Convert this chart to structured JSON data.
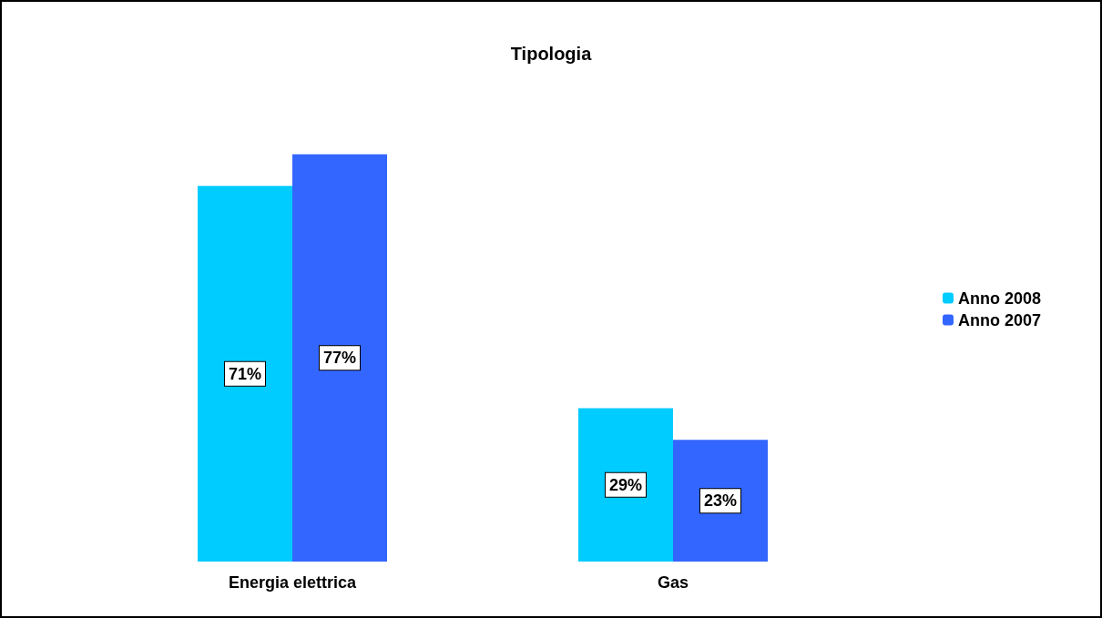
{
  "chart_data": {
    "type": "bar",
    "title": "Tipologia",
    "categories": [
      "Energia elettrica",
      "Gas"
    ],
    "series": [
      {
        "name": "Anno 2008",
        "color": "#00ccff",
        "values": [
          71,
          29
        ],
        "value_labels": [
          "71%",
          "29%"
        ]
      },
      {
        "name": "Anno 2007",
        "color": "#3366ff",
        "values": [
          77,
          23
        ],
        "value_labels": [
          "77%",
          "23%"
        ]
      }
    ],
    "legend": "right"
  }
}
